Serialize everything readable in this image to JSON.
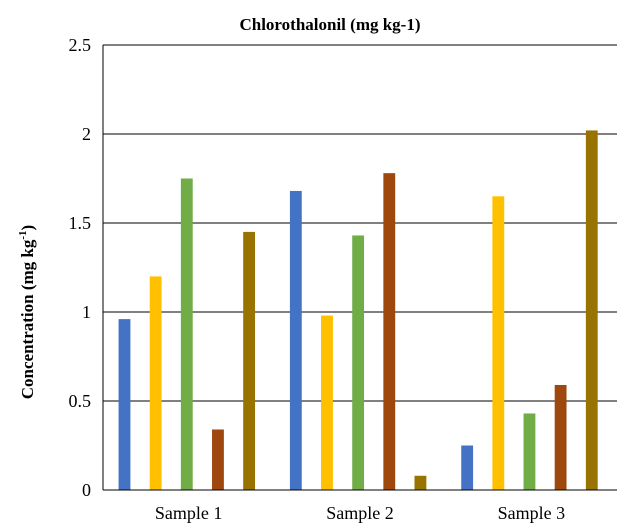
{
  "chart_data": {
    "type": "bar",
    "title": "Chlorothalonil (mg kg-1)",
    "xlabel": "",
    "ylabel": "Concentration (mg kg",
    "ylabel_superscript": "-1",
    "ylabel_suffix": ")",
    "categories": [
      "Sample 1",
      "Sample 2",
      "Sample 3"
    ],
    "ylim": [
      0,
      2.5
    ],
    "y_ticks": [
      "0",
      "0.5",
      "1",
      "1.5",
      "2",
      "2.5"
    ],
    "y_tick_values": [
      0,
      0.5,
      1,
      1.5,
      2,
      2.5
    ],
    "grid": true,
    "legend": "none",
    "series": [
      {
        "color": "#4472C4",
        "values": [
          0.96,
          1.68,
          0.25
        ]
      },
      {
        "color": "#FFC000",
        "values": [
          1.2,
          0.98,
          1.65
        ]
      },
      {
        "color": "#70AD47",
        "values": [
          1.75,
          1.43,
          0.43
        ]
      },
      {
        "color": "#9E480E",
        "values": [
          0.34,
          1.78,
          0.59
        ]
      },
      {
        "color": "#997300",
        "values": [
          1.45,
          0.08,
          2.02
        ]
      }
    ]
  }
}
